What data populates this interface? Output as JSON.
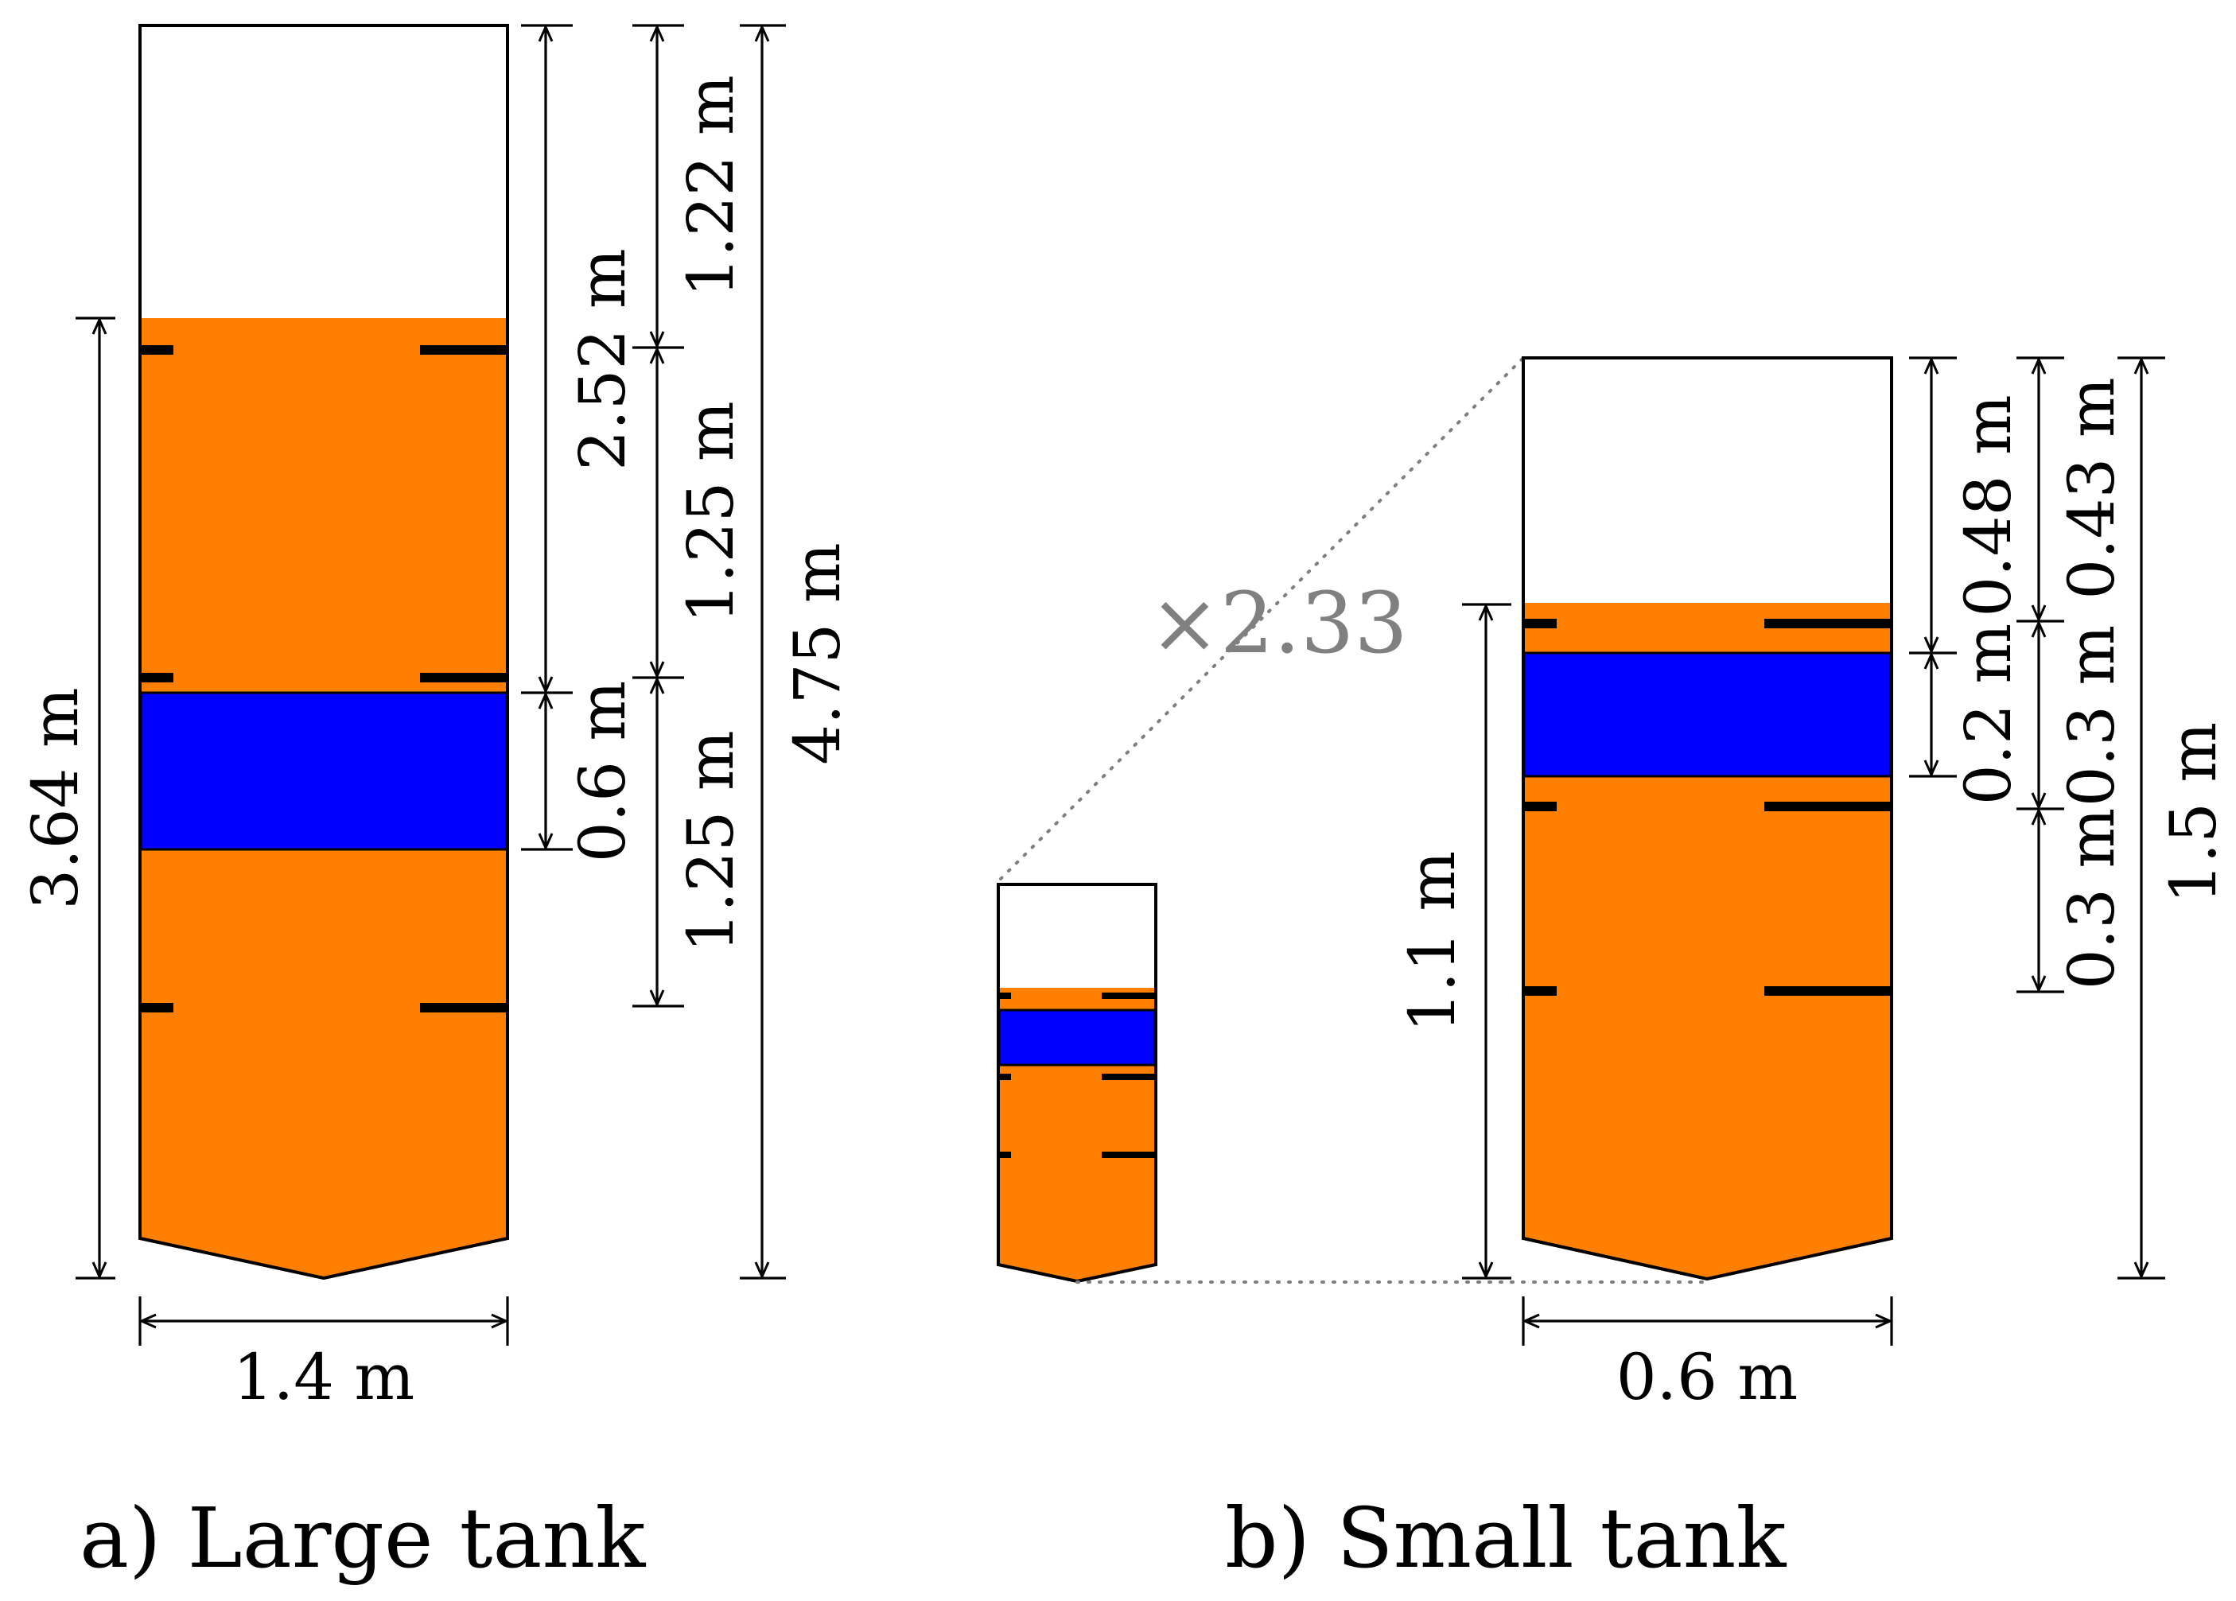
{
  "colors": {
    "liquid": "#FF7F00",
    "layer": "#0000FF",
    "outline": "#000000",
    "scale_text": "#808080",
    "background": "#FFFFFF"
  },
  "large_tank": {
    "caption": "a) Large tank",
    "labels": {
      "width": "1.4 m",
      "fill_height": "3.64 m",
      "total_height": "4.75 m",
      "headspace": "1.22 m",
      "upper_sensor_gap": "1.25 m",
      "lower_sensor_gap": "1.25 m",
      "layer_depth": "2.52 m",
      "layer_thickness": "0.6 m"
    }
  },
  "small_tank": {
    "caption": "b) Small tank",
    "labels": {
      "width": "0.6 m",
      "fill_height": "1.1 m",
      "total_height": "1.5 m",
      "layer_depth": "0.48 m",
      "layer_thickness": "0.2 m",
      "headspace": "0.43 m",
      "upper_sensor_gap": "0.3 m",
      "lower_sensor_gap": "0.3 m"
    }
  },
  "scale_factor": "×2.33"
}
